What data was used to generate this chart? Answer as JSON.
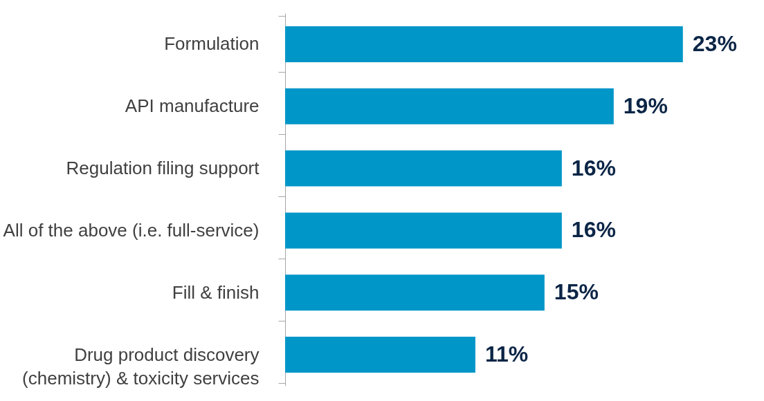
{
  "chart_data": {
    "type": "bar",
    "orientation": "horizontal",
    "categories": [
      "Formulation",
      "API manufacture",
      "Regulation filing support",
      "All of the above (i.e. full-service)",
      "Fill & finish",
      "Drug product discovery (chemistry) & toxicity services"
    ],
    "values": [
      23,
      19,
      16,
      16,
      15,
      11
    ],
    "value_labels": [
      "23%",
      "19%",
      "16%",
      "16%",
      "15%",
      "11%"
    ],
    "color": "#0096c8"
  }
}
